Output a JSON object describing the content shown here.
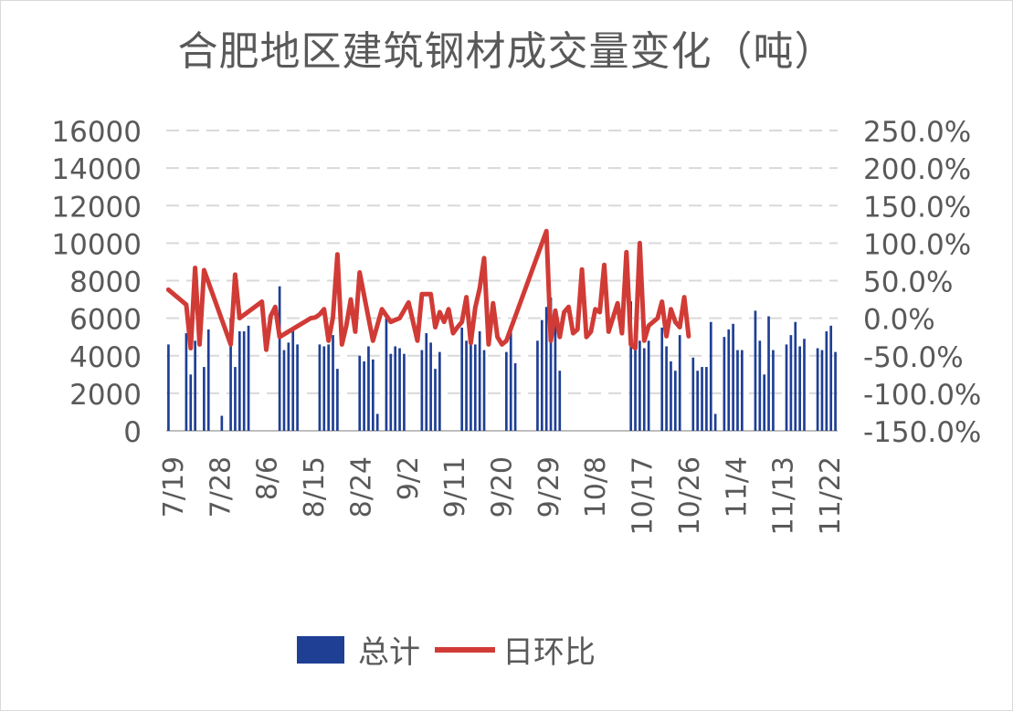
{
  "chart_data": {
    "type": "bar+line",
    "title": "合肥地区建筑钢材成交量变化（吨）",
    "x_tick_labels": [
      "7/19",
      "7/28",
      "8/6",
      "8/15",
      "8/24",
      "9/2",
      "9/11",
      "9/20",
      "9/29",
      "10/8",
      "10/17",
      "10/26",
      "11/4",
      "11/13",
      "11/22"
    ],
    "y_left": {
      "ticks": [
        "0",
        "2000",
        "4000",
        "6000",
        "8000",
        "10000",
        "12000",
        "14000",
        "16000"
      ],
      "ylim": [
        0,
        16000
      ]
    },
    "y_right": {
      "ticks": [
        "-150.0%",
        "-100.0%",
        "-50.0%",
        "0.0%",
        "50.0%",
        "100.0%",
        "150.0%",
        "200.0%",
        "250.0%"
      ],
      "ylim": [
        -150,
        250
      ]
    },
    "grid": true,
    "legend_position": "bottom",
    "series": [
      {
        "name": "总计",
        "type": "bar",
        "axis": "left",
        "color": "#1f3f94",
        "values": [
          [
            0,
            4600
          ],
          [
            4,
            5200
          ],
          [
            5,
            3000
          ],
          [
            6,
            4800
          ],
          [
            8,
            3400
          ],
          [
            9,
            5400
          ],
          [
            12,
            800
          ],
          [
            14,
            6000
          ],
          [
            15,
            3400
          ],
          [
            16,
            5300
          ],
          [
            17,
            5300
          ],
          [
            18,
            5600
          ],
          [
            25,
            7700
          ],
          [
            26,
            4300
          ],
          [
            27,
            4700
          ],
          [
            28,
            5500
          ],
          [
            29,
            4600
          ],
          [
            34,
            4600
          ],
          [
            35,
            4500
          ],
          [
            36,
            4600
          ],
          [
            37,
            5100
          ],
          [
            38,
            3300
          ],
          [
            43,
            4000
          ],
          [
            44,
            3700
          ],
          [
            45,
            4500
          ],
          [
            46,
            3800
          ],
          [
            47,
            900
          ],
          [
            49,
            6000
          ],
          [
            50,
            4100
          ],
          [
            51,
            4500
          ],
          [
            52,
            4400
          ],
          [
            53,
            4100
          ],
          [
            57,
            4300
          ],
          [
            58,
            5200
          ],
          [
            59,
            4700
          ],
          [
            60,
            3300
          ],
          [
            61,
            4200
          ],
          [
            66,
            5500
          ],
          [
            67,
            4800
          ],
          [
            68,
            4900
          ],
          [
            69,
            4600
          ],
          [
            70,
            5300
          ],
          [
            71,
            4300
          ],
          [
            76,
            4200
          ],
          [
            77,
            5600
          ],
          [
            78,
            3600
          ],
          [
            83,
            4800
          ],
          [
            84,
            5900
          ],
          [
            85,
            6600
          ],
          [
            86,
            7100
          ],
          [
            87,
            6000
          ],
          [
            88,
            3200
          ],
          [
            104,
            6900
          ],
          [
            105,
            5400
          ],
          [
            106,
            4800
          ],
          [
            107,
            4400
          ],
          [
            108,
            4800
          ],
          [
            111,
            5500
          ],
          [
            112,
            4500
          ],
          [
            113,
            3700
          ],
          [
            114,
            3200
          ],
          [
            115,
            5100
          ],
          [
            118,
            3900
          ],
          [
            119,
            3200
          ],
          [
            120,
            3400
          ],
          [
            121,
            3400
          ],
          [
            122,
            5800
          ],
          [
            123,
            900
          ],
          [
            125,
            5000
          ],
          [
            126,
            5400
          ],
          [
            127,
            5700
          ],
          [
            128,
            4300
          ],
          [
            129,
            4300
          ],
          [
            132,
            6400
          ],
          [
            133,
            4800
          ],
          [
            134,
            3000
          ],
          [
            135,
            6100
          ],
          [
            136,
            4300
          ],
          [
            139,
            4600
          ],
          [
            140,
            5100
          ],
          [
            141,
            5800
          ],
          [
            142,
            4500
          ],
          [
            143,
            4900
          ],
          [
            146,
            4400
          ],
          [
            147,
            4300
          ],
          [
            148,
            5300
          ],
          [
            149,
            5600
          ],
          [
            150,
            4200
          ]
        ]
      },
      {
        "name": "日环比",
        "type": "line",
        "axis": "right",
        "color": "#d13b36",
        "values": [
          [
            0,
            38
          ],
          [
            4,
            18
          ],
          [
            5,
            -40
          ],
          [
            6,
            67
          ],
          [
            7,
            -35
          ],
          [
            8,
            64
          ],
          [
            14,
            -35
          ],
          [
            15,
            58
          ],
          [
            16,
            0
          ],
          [
            21,
            22
          ],
          [
            22,
            -42
          ],
          [
            23,
            3
          ],
          [
            24,
            15
          ],
          [
            25,
            -25
          ],
          [
            32,
            0
          ],
          [
            33,
            1
          ],
          [
            34,
            5
          ],
          [
            35,
            12
          ],
          [
            36,
            -30
          ],
          [
            37,
            1
          ],
          [
            38,
            85
          ],
          [
            39,
            -35
          ],
          [
            40,
            -10
          ],
          [
            41,
            25
          ],
          [
            42,
            -18
          ],
          [
            43,
            61
          ],
          [
            46,
            -30
          ],
          [
            48,
            12
          ],
          [
            50,
            -5
          ],
          [
            52,
            0
          ],
          [
            54,
            21
          ],
          [
            56,
            -30
          ],
          [
            57,
            32
          ],
          [
            58,
            32
          ],
          [
            59,
            32
          ],
          [
            60,
            -12
          ],
          [
            61,
            8
          ],
          [
            62,
            -5
          ],
          [
            63,
            12
          ],
          [
            64,
            -20
          ],
          [
            65,
            -12
          ],
          [
            66,
            -5
          ],
          [
            67,
            28
          ],
          [
            68,
            -33
          ],
          [
            69,
            14
          ],
          [
            70,
            40
          ],
          [
            71,
            80
          ],
          [
            72,
            -35
          ],
          [
            73,
            20
          ],
          [
            74,
            -25
          ],
          [
            75,
            -35
          ],
          [
            76,
            -30
          ],
          [
            85,
            116
          ],
          [
            86,
            -30
          ],
          [
            87,
            10
          ],
          [
            88,
            -25
          ],
          [
            89,
            8
          ],
          [
            90,
            15
          ],
          [
            91,
            -20
          ],
          [
            92,
            -15
          ],
          [
            93,
            65
          ],
          [
            94,
            -25
          ],
          [
            95,
            -18
          ],
          [
            96,
            12
          ],
          [
            97,
            8
          ],
          [
            98,
            71
          ],
          [
            99,
            -18
          ],
          [
            101,
            20
          ],
          [
            102,
            -20
          ],
          [
            103,
            88
          ],
          [
            104,
            -35
          ],
          [
            105,
            -40
          ],
          [
            106,
            100
          ],
          [
            107,
            -30
          ],
          [
            108,
            -10
          ],
          [
            110,
            0
          ],
          [
            111,
            22
          ],
          [
            112,
            -24
          ],
          [
            113,
            12
          ],
          [
            114,
            -5
          ],
          [
            115,
            -12
          ],
          [
            116,
            28
          ],
          [
            117,
            -24
          ]
        ]
      }
    ]
  }
}
